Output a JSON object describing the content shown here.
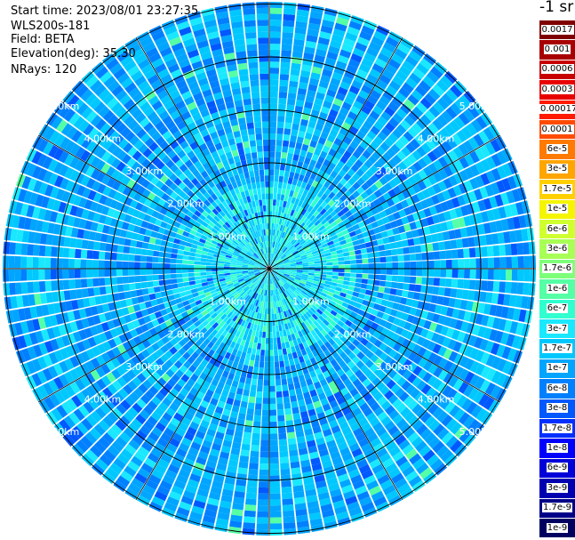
{
  "header": {
    "start_time": "Start time: 2023/08/01 23:27:35",
    "instrument": "WLS200s-181",
    "field": "Field: BETA",
    "elevation": "Elevation(deg): 35.30",
    "nrays": "NRays: 120"
  },
  "colorbar": {
    "unit_label": "-1 sr",
    "entries": [
      {
        "label": "0.0017",
        "color": "#7f0000"
      },
      {
        "label": "0.001",
        "color": "#a80000"
      },
      {
        "label": "0.0006",
        "color": "#c80000"
      },
      {
        "label": "0.0003",
        "color": "#e80000"
      },
      {
        "label": "0.00017",
        "color": "#ff1a00"
      },
      {
        "label": "0.0001",
        "color": "#ff4a00"
      },
      {
        "label": "6e-5",
        "color": "#ff7a00"
      },
      {
        "label": "3e-5",
        "color": "#ffa500"
      },
      {
        "label": "1.7e-5",
        "color": "#ffd000"
      },
      {
        "label": "1e-5",
        "color": "#f5f500"
      },
      {
        "label": "6e-6",
        "color": "#d0ff30"
      },
      {
        "label": "3e-6",
        "color": "#a8ff55"
      },
      {
        "label": "1.7e-6",
        "color": "#7dff7a"
      },
      {
        "label": "1e-6",
        "color": "#55ffa5"
      },
      {
        "label": "6e-7",
        "color": "#30ffd0"
      },
      {
        "label": "3e-7",
        "color": "#1ae8ff"
      },
      {
        "label": "1.7e-7",
        "color": "#00c8ff"
      },
      {
        "label": "1e-7",
        "color": "#00a5ff"
      },
      {
        "label": "6e-8",
        "color": "#0080ff"
      },
      {
        "label": "3e-8",
        "color": "#0058ff"
      },
      {
        "label": "1.7e-8",
        "color": "#0030ff"
      },
      {
        "label": "1e-8",
        "color": "#0000ff"
      },
      {
        "label": "6e-9",
        "color": "#0000d8"
      },
      {
        "label": "3e-9",
        "color": "#0000b0"
      },
      {
        "label": "1.7e-9",
        "color": "#000088"
      },
      {
        "label": "1e-9",
        "color": "#000060"
      }
    ]
  },
  "chart_data": {
    "type": "heatmap",
    "projection": "polar (PPI scan)",
    "field": "BETA",
    "elevation_deg": 35.3,
    "n_rays": 120,
    "range_ring_labels": [
      "1.00km",
      "2.00km",
      "3.00km",
      "4.00km",
      "5.00km"
    ],
    "radial_spokes_deg": [
      0,
      30,
      60,
      90,
      120,
      150,
      180,
      210,
      240,
      270,
      300,
      330
    ],
    "value_range": [
      1e-09,
      0.0017
    ],
    "dominant_values": "mostly 3e-8 to 3e-7 across all rays; near field 3e-7 to 1e-6; isolated cells up to 3e-6",
    "color_scale": "log"
  },
  "colors": {
    "background": "#ffffff",
    "grid": "#000000",
    "ring_label": "#ffffff"
  }
}
